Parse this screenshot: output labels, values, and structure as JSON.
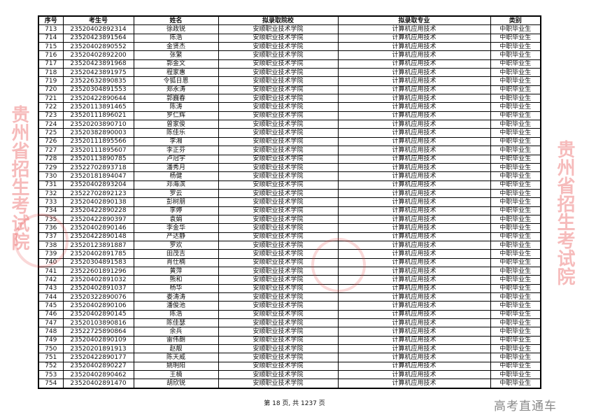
{
  "table": {
    "headers": [
      "序号",
      "考生号",
      "姓名",
      "拟录取院校",
      "拟录取专业",
      "类别"
    ],
    "school": "安顺职业技术学院",
    "major": "计算机应用技术",
    "category": "中职毕业生",
    "rows": [
      [
        "713",
        "23520402892314",
        "徐政锐"
      ],
      [
        "714",
        "23520423891564",
        "陈浩"
      ],
      [
        "715",
        "23520402890552",
        "金贤杰"
      ],
      [
        "716",
        "23520402892200",
        "张繁"
      ],
      [
        "717",
        "23520423891968",
        "郭金文"
      ],
      [
        "718",
        "23520423891975",
        "程家惠"
      ],
      [
        "719",
        "23522632890835",
        "令狐日恩"
      ],
      [
        "720",
        "23520304891553",
        "郑永涛"
      ],
      [
        "721",
        "23520422890644",
        "郭巍春"
      ],
      [
        "722",
        "23520113891465",
        "陈涛"
      ],
      [
        "723",
        "23520111896021",
        "罗仁辉"
      ],
      [
        "724",
        "23520203890710",
        "曾家俊"
      ],
      [
        "725",
        "23520382890003",
        "陈佳乐"
      ],
      [
        "726",
        "23520111895566",
        "李湘"
      ],
      [
        "727",
        "23520111895607",
        "李正芬"
      ],
      [
        "728",
        "23520113890785",
        "卢冠宇"
      ],
      [
        "729",
        "23522702893718",
        "潘秀月"
      ],
      [
        "730",
        "23520181894047",
        "杨健"
      ],
      [
        "731",
        "23520402893204",
        "邓海滨"
      ],
      [
        "732",
        "23522702892123",
        "罗云"
      ],
      [
        "733",
        "23520402890138",
        "彭树朋"
      ],
      [
        "734",
        "23520422890228",
        "李婷"
      ],
      [
        "735",
        "23520422890397",
        "袁娟"
      ],
      [
        "736",
        "23520402890146",
        "李金华"
      ],
      [
        "737",
        "23520422890148",
        "严达静"
      ],
      [
        "738",
        "23520123891887",
        "罗欢"
      ],
      [
        "739",
        "23520402891785",
        "田茂吉"
      ],
      [
        "740",
        "23520304891583",
        "肖仕楠"
      ],
      [
        "741",
        "23522601891296",
        "黄萍"
      ],
      [
        "742",
        "23520402891032",
        "熊和"
      ],
      [
        "743",
        "23520402891037",
        "杨华"
      ],
      [
        "744",
        "23520322890076",
        "娄涛涛"
      ],
      [
        "745",
        "23520402890106",
        "潘俊池"
      ],
      [
        "746",
        "23520402890145",
        "陈浩"
      ],
      [
        "747",
        "23520103890816",
        "陈佳瑟"
      ],
      [
        "748",
        "23522725890864",
        "余兵"
      ],
      [
        "749",
        "23520402890109",
        "雷伟朗"
      ],
      [
        "750",
        "23520201891913",
        "赵靓"
      ],
      [
        "751",
        "23520422890177",
        "陈天威"
      ],
      [
        "752",
        "23520402890227",
        "姚明阳"
      ],
      [
        "753",
        "23520402890462",
        "王楠"
      ],
      [
        "754",
        "23520402891470",
        "胡欣锐"
      ]
    ]
  },
  "footer": "第 18 页, 共 1237 页",
  "watermarks": {
    "red": "贵州省招生考试院",
    "corner": "高考直通车"
  },
  "colors": {
    "watermark_red": "#e63c3c",
    "corner_gray": "#8a8a8a"
  }
}
